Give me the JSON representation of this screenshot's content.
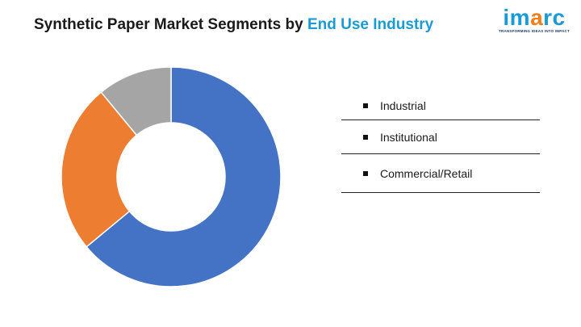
{
  "header": {
    "title_prefix": "Synthetic Paper Market Segments by ",
    "title_highlight": "End Use Industry"
  },
  "logo": {
    "word": "imarc",
    "tagline": "TRANSFORMING IDEAS INTO IMPACT",
    "colors": [
      "#1a9ad6",
      "#1a9ad6",
      "#f07f1b",
      "#1a9ad6",
      "#1a9ad6"
    ]
  },
  "chart_data": {
    "type": "pie",
    "donut": true,
    "categories": [
      "Industrial",
      "Institutional",
      "Commercial/Retail"
    ],
    "values": [
      64,
      25,
      11
    ],
    "colors": [
      "#4472c4",
      "#ed7d31",
      "#a5a5a5"
    ],
    "legend_position": "right"
  }
}
